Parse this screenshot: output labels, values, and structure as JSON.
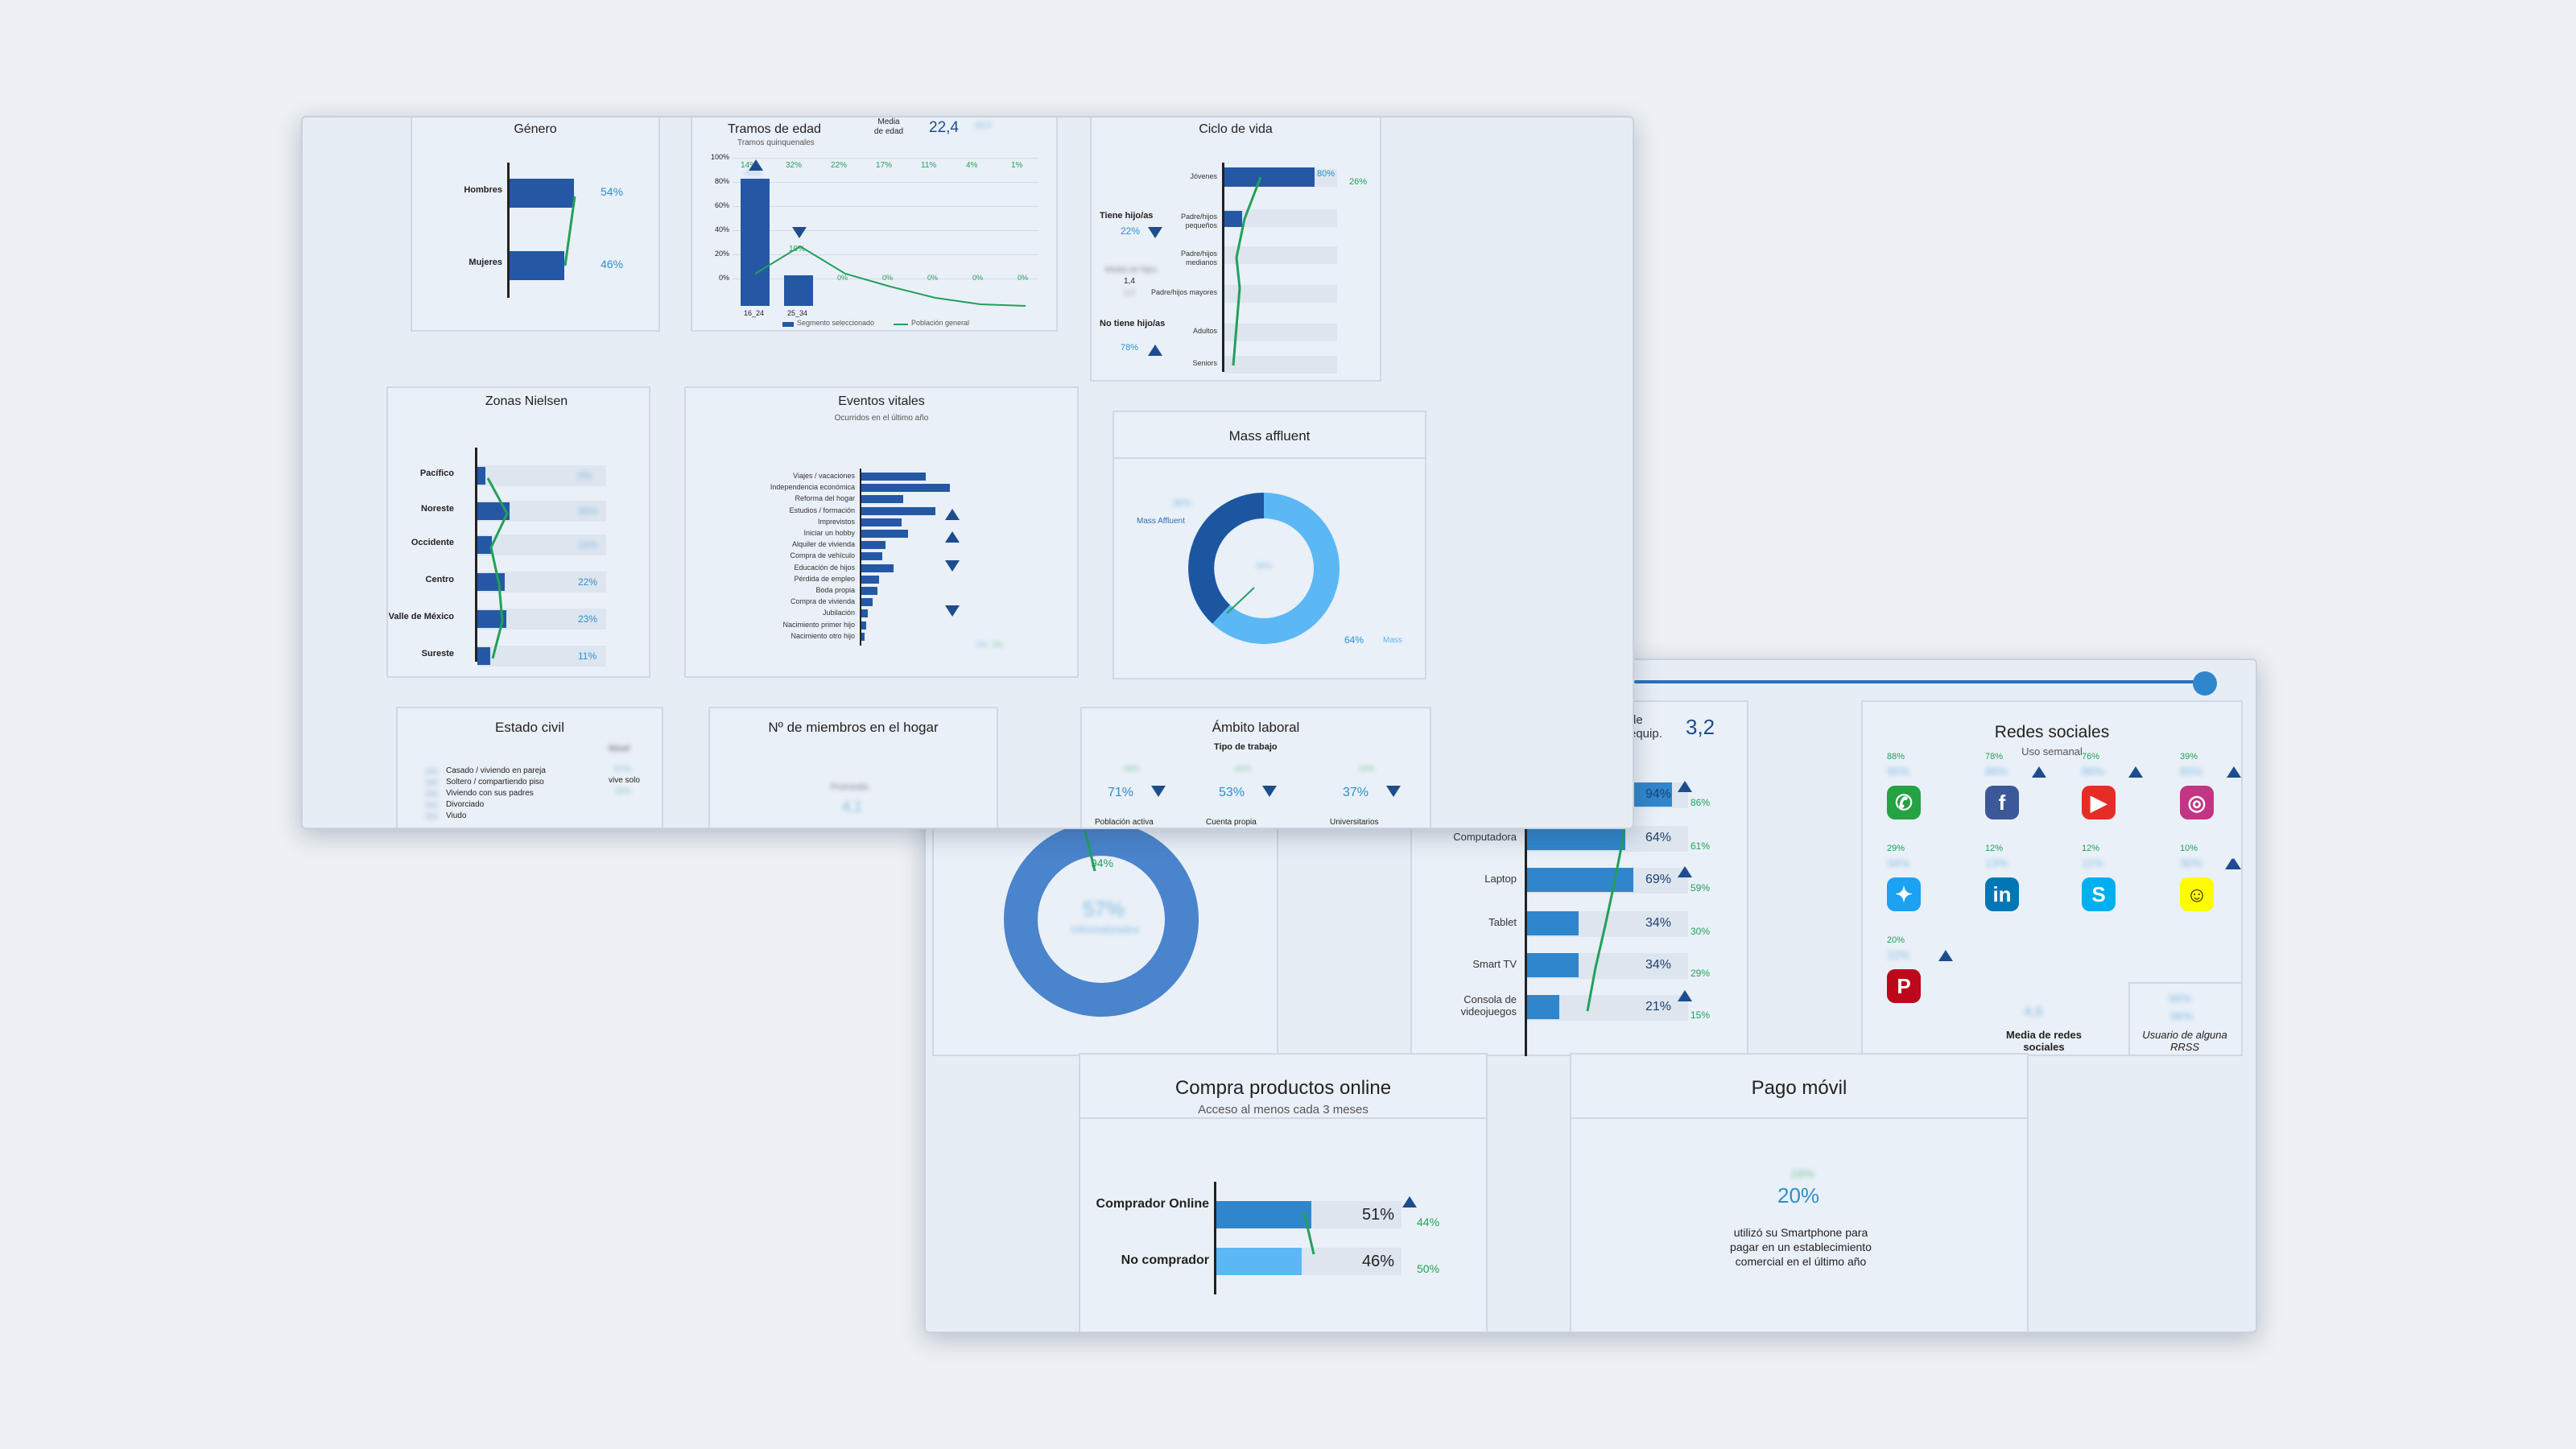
{
  "win1": {
    "genero": {
      "title": "Género",
      "rows": [
        {
          "label": "Hombres",
          "pct": "54%"
        },
        {
          "label": "Mujeres",
          "pct": "46%"
        }
      ]
    },
    "tramos": {
      "title": "Tramos de edad",
      "subtitle": "Tramos quinquenales",
      "media_label": "Media de edad",
      "media_value": "22,4",
      "media_general": "38,9",
      "ticks": [
        "100%",
        "80%",
        "60%",
        "40%",
        "20%",
        "0%"
      ],
      "top_labels": [
        "14%",
        "32%",
        "22%",
        "17%",
        "11%",
        "4%",
        "1%"
      ],
      "bar1_label": "81%",
      "bar2_label": "19%",
      "small_labels": [
        "0%",
        "0%",
        "0%",
        "0%",
        "0%"
      ],
      "x_labels": [
        "16_24",
        "25_34"
      ],
      "legend_seg": "Segmento seleccionado",
      "legend_pop": "Población general"
    },
    "ciclo": {
      "title": "Ciclo de vida",
      "rows": [
        "Jóvenes",
        "Padre/hijos pequeños",
        "Padre/hijos medianos",
        "Padre/hijos mayores",
        "Adultos",
        "Seniors"
      ],
      "top_pct": "80%",
      "top_pct2": "26%",
      "tiene": "Tiene hijo/as",
      "tiene_pct": "22%",
      "media_label": "Media de hijos",
      "media_val": "1,4",
      "media_val2": "1,1",
      "no_tiene": "No tiene hijo/as",
      "no_tiene_pct": "78%"
    },
    "zonas": {
      "title": "Zonas Nielsen",
      "rows": [
        {
          "label": "Pacífico",
          "pct": "5%"
        },
        {
          "label": "Noreste",
          "pct": "35%"
        },
        {
          "label": "Occidente",
          "pct": "15%"
        },
        {
          "label": "Centro",
          "pct": "22%"
        },
        {
          "label": "Valle de México",
          "pct": "23%"
        },
        {
          "label": "Sureste",
          "pct": "11%"
        }
      ]
    },
    "eventos": {
      "title": "Eventos vitales",
      "subtitle": "Ocurridos en el último año",
      "rows": [
        "Viajes / vacaciones",
        "Independencia económica",
        "Reforma del hogar",
        "Estudios / formación",
        "Imprevistos",
        "Iniciar un hobby",
        "Alquiler de vivienda",
        "Compra de vehículo",
        "Educación de hijos",
        "Pérdida de empleo",
        "Boda propia",
        "Compra de vivienda",
        "Jubilación",
        "Nacimiento primer hijo",
        "Nacimiento otro hijo"
      ],
      "last_pct": "2%",
      "last_pct2": "3%"
    },
    "mass": {
      "title": "Mass affluent",
      "label_left": "Mass Affluent",
      "pct_left": "36%",
      "pct_right": "64%",
      "label_right": "Mass",
      "center": "36%"
    },
    "estado": {
      "title": "Estado civil",
      "header": "Nivel",
      "rows": [
        "Casado / viviendo en pareja",
        "Soltero / compartiendo piso",
        "Viviendo con sus padres",
        "Divorciado",
        "Viudo"
      ],
      "small_pcts": [
        "1%",
        "1%"
      ],
      "right_pct": "37%",
      "right_label": "vive solo",
      "right_pct2": "33%"
    },
    "miembros": {
      "title": "Nº de miembros en el hogar",
      "label": "Promedio",
      "value": "4,1"
    },
    "ambito": {
      "title": "Ámbito laboral",
      "header": "Tipo de trabajo",
      "items": [
        {
          "pct": "71%",
          "label": "Población activa",
          "small": "68%"
        },
        {
          "pct": "53%",
          "label": "Cuenta propia",
          "small": "46%"
        },
        {
          "pct": "37%",
          "label": "Universitarios",
          "small": "34%"
        }
      ]
    }
  },
  "win2": {
    "donut": {
      "pct_top": "94%",
      "center": "57%",
      "center_label": "Informatizados"
    },
    "disp": {
      "header": "de equip.",
      "value": "3,2",
      "rows": [
        {
          "label": "Smartphone",
          "pct": "94%",
          "pctg": "86%"
        },
        {
          "label": "Computadora",
          "pct": "64%",
          "pctg": "61%"
        },
        {
          "label": "Laptop",
          "pct": "69%",
          "pctg": "59%"
        },
        {
          "label": "Tablet",
          "pct": "34%",
          "pctg": "30%"
        },
        {
          "label": "Smart TV",
          "pct": "34%",
          "pctg": "29%"
        },
        {
          "label": "Consola de videojuegos",
          "pct": "21%",
          "pctg": "15%"
        }
      ]
    },
    "redes": {
      "title": "Redes sociales",
      "subtitle": "Uso semanal",
      "items": [
        {
          "name": "whatsapp-icon",
          "top": "88%",
          "val": "90%",
          "color": "#25a244",
          "glyph": "✆"
        },
        {
          "name": "facebook-icon",
          "top": "78%",
          "val": "86%",
          "color": "#3b5998",
          "glyph": "f"
        },
        {
          "name": "youtube-icon",
          "top": "76%",
          "val": "86%",
          "color": "#e52d27",
          "glyph": "▶"
        },
        {
          "name": "instagram-icon",
          "top": "39%",
          "val": "65%",
          "color": "#c13584",
          "glyph": "◎"
        },
        {
          "name": "twitter-icon",
          "top": "29%",
          "val": "34%",
          "color": "#1da1f2",
          "glyph": "✦"
        },
        {
          "name": "linkedin-icon",
          "top": "12%",
          "val": "13%",
          "color": "#0077b5",
          "glyph": "in"
        },
        {
          "name": "skype-icon",
          "top": "12%",
          "val": "11%",
          "color": "#00aff0",
          "glyph": "S"
        },
        {
          "name": "snapchat-icon",
          "top": "10%",
          "val": "30%",
          "color": "#fffc00",
          "glyph": "☺"
        },
        {
          "name": "pinterest-icon",
          "top": "20%",
          "val": "22%",
          "color": "#bd081c",
          "glyph": "P"
        }
      ],
      "media_val": "4,6",
      "media_val2": "3,5",
      "media_label": "Media de redes sociales",
      "usuario_pct": "99%",
      "usuario_pct2": "96%",
      "usuario_label": "Usuario de alguna RRSS"
    },
    "compra": {
      "title": "Compra productos online",
      "subtitle": "Acceso al menos cada 3 meses",
      "rows": [
        {
          "label": "Comprador Online",
          "pct": "51%",
          "pctg": "44%"
        },
        {
          "label": "No comprador",
          "pct": "46%",
          "pctg": "50%"
        }
      ]
    },
    "pago": {
      "title": "Pago móvil",
      "small": "16%",
      "value": "20%",
      "text": "utilizó su Smartphone para pagar en un establecimiento comercial en el último año"
    }
  }
}
